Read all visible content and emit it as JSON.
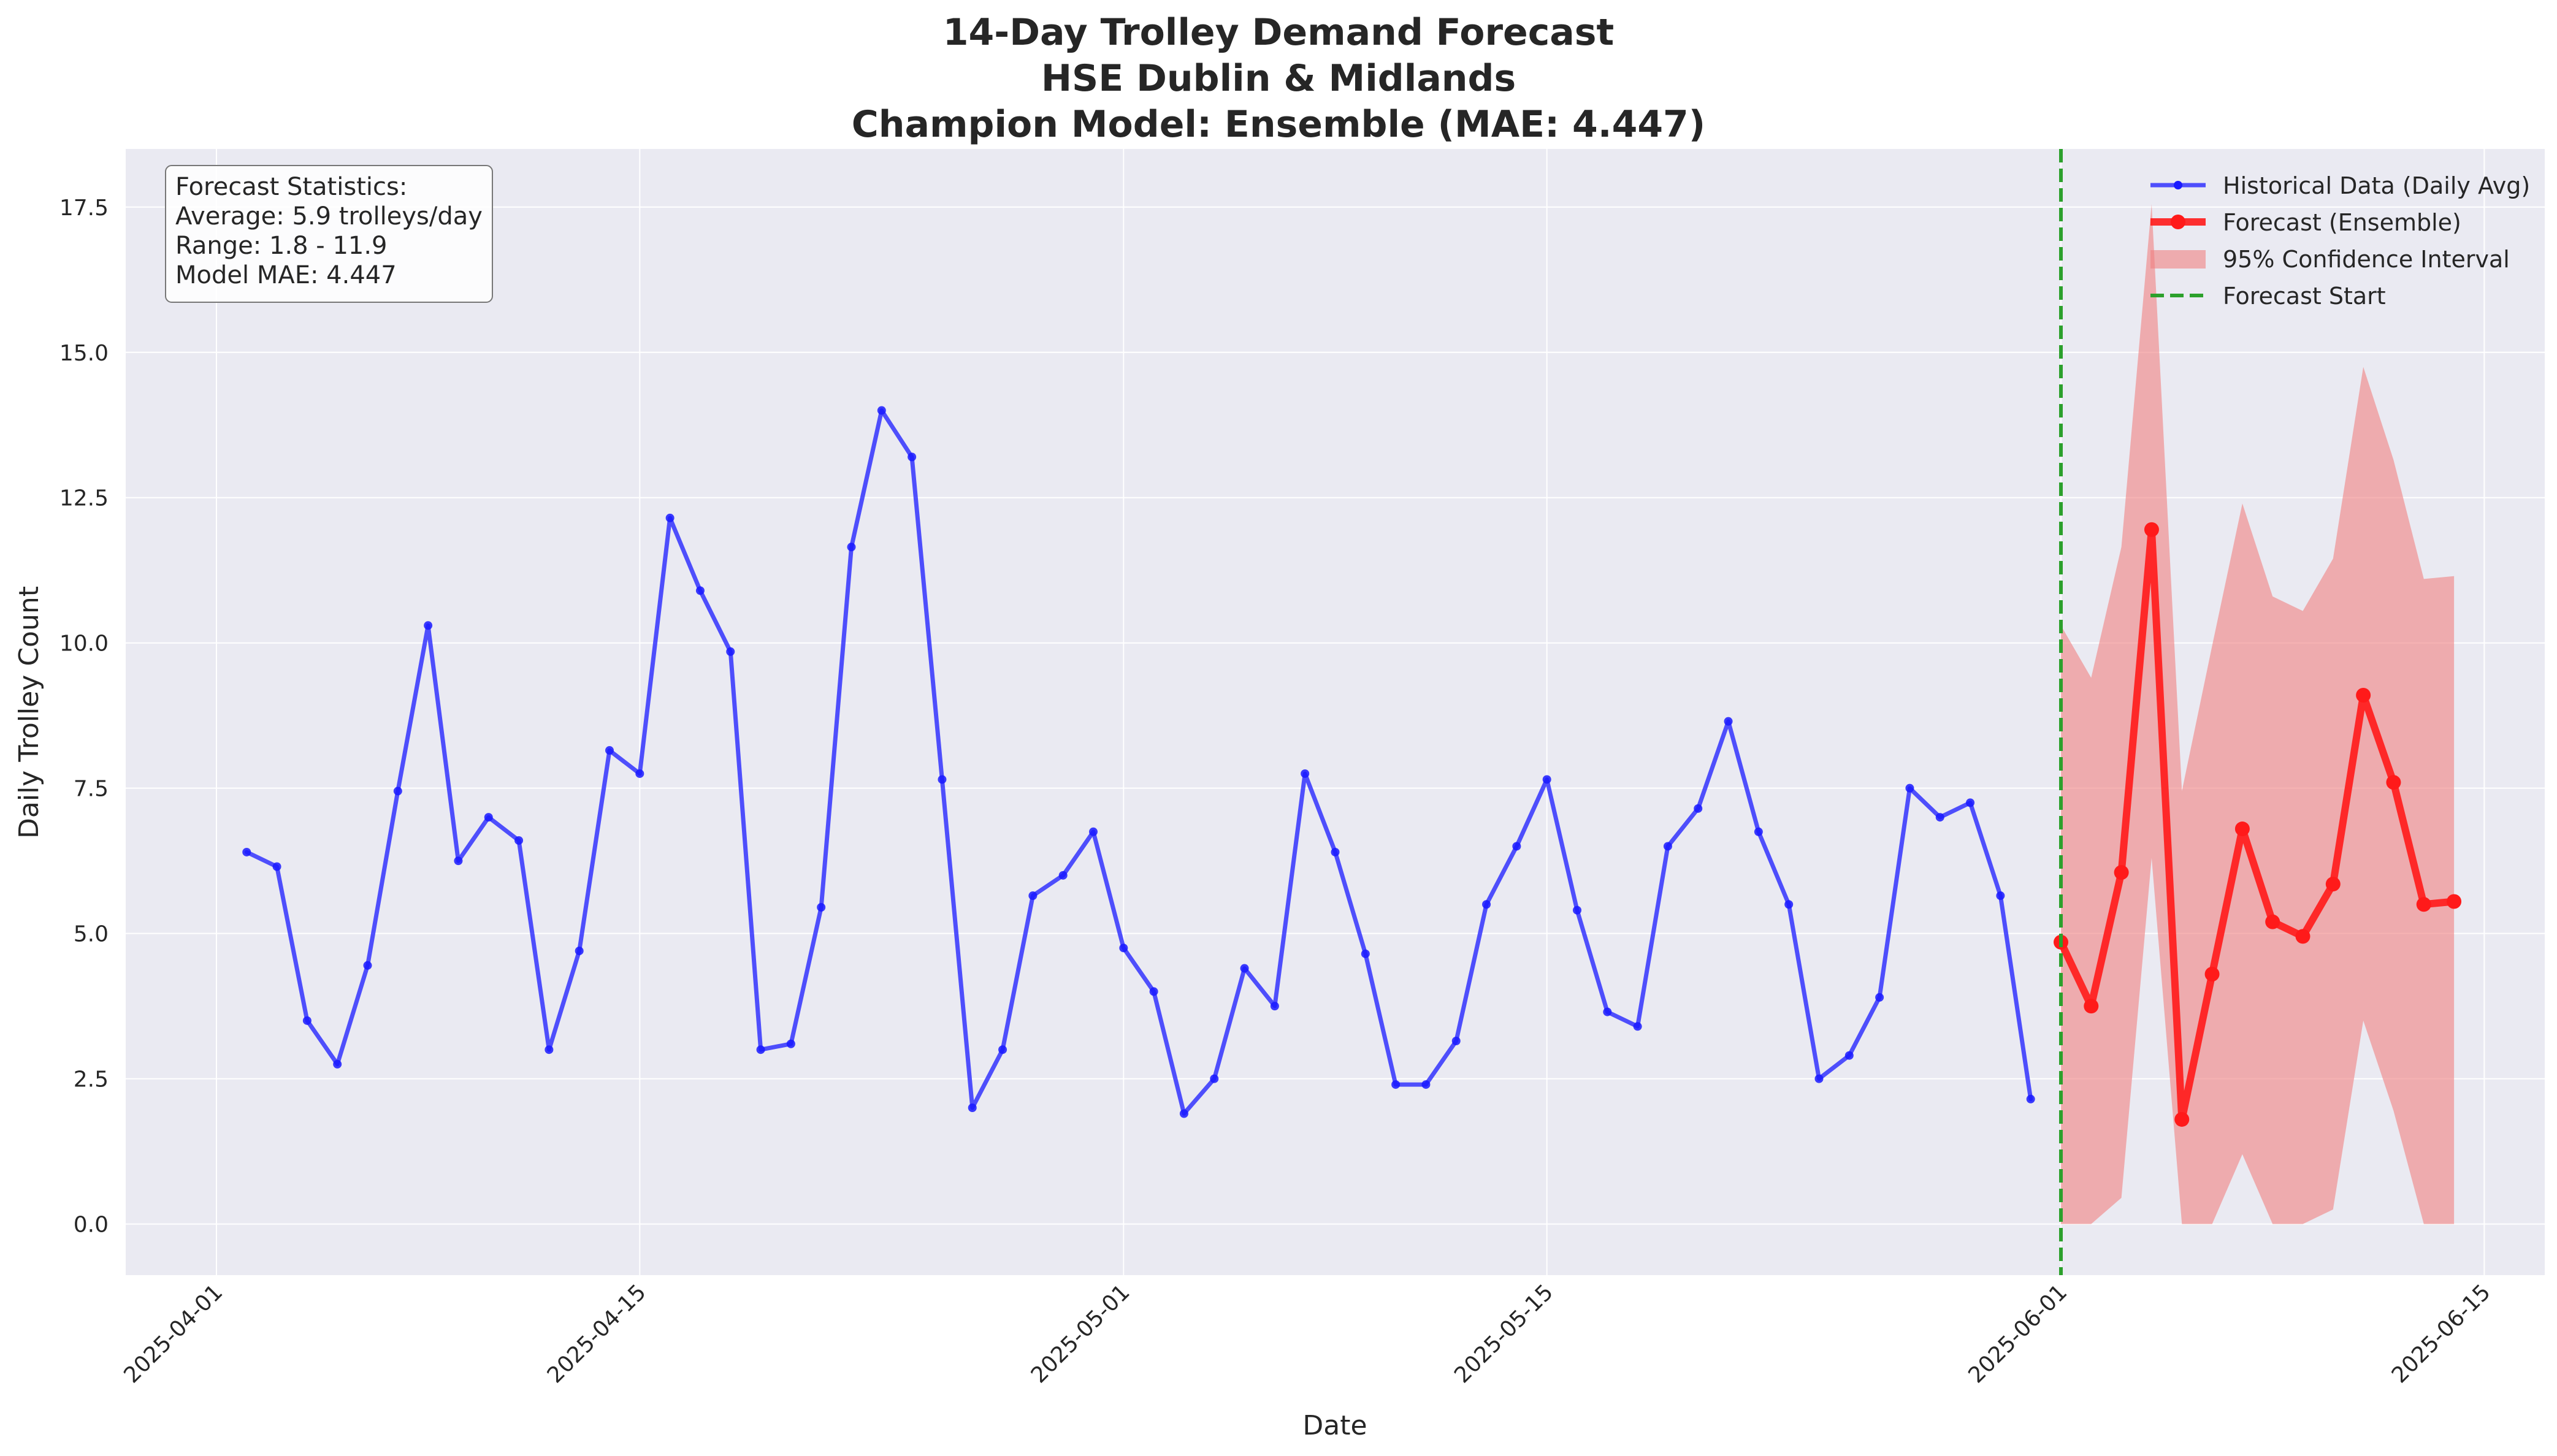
{
  "chart_data": {
    "type": "line",
    "title_lines": [
      "14-Day Trolley Demand Forecast",
      "HSE Dublin & Midlands",
      "Champion Model: Ensemble (MAE: 4.447)"
    ],
    "xlabel": "Date",
    "ylabel": "Daily Trolley Count",
    "x_ticks": [
      "2025-04-01",
      "2025-04-15",
      "2025-05-01",
      "2025-05-15",
      "2025-06-01",
      "2025-06-15"
    ],
    "y_ticks": [
      "0.0",
      "2.5",
      "5.0",
      "7.5",
      "10.0",
      "12.5",
      "15.0",
      "17.5"
    ],
    "xlim": [
      "2025-03-29",
      "2025-06-17"
    ],
    "ylim": [
      -0.88,
      18.5
    ],
    "grid": true,
    "legend_position": "top-right",
    "stats_box_position": "top-left",
    "colors": {
      "background": "#eaeaf2",
      "grid": "#ffffff",
      "historical": "#1a1aff",
      "forecast": "#ff1a1a",
      "ci_fill": "#f08080",
      "forecast_start": "#2ca02c"
    },
    "historical": {
      "name": "Historical Data (Daily Avg)",
      "x": [
        "2025-04-02",
        "2025-04-03",
        "2025-04-04",
        "2025-04-05",
        "2025-04-06",
        "2025-04-07",
        "2025-04-08",
        "2025-04-09",
        "2025-04-10",
        "2025-04-11",
        "2025-04-12",
        "2025-04-13",
        "2025-04-14",
        "2025-04-15",
        "2025-04-16",
        "2025-04-17",
        "2025-04-18",
        "2025-04-19",
        "2025-04-20",
        "2025-04-21",
        "2025-04-22",
        "2025-04-23",
        "2025-04-24",
        "2025-04-25",
        "2025-04-26",
        "2025-04-27",
        "2025-04-28",
        "2025-04-29",
        "2025-04-30",
        "2025-05-01",
        "2025-05-02",
        "2025-05-03",
        "2025-05-04",
        "2025-05-05",
        "2025-05-06",
        "2025-05-07",
        "2025-05-08",
        "2025-05-09",
        "2025-05-10",
        "2025-05-11",
        "2025-05-12",
        "2025-05-13",
        "2025-05-14",
        "2025-05-15",
        "2025-05-16",
        "2025-05-17",
        "2025-05-18",
        "2025-05-19",
        "2025-05-20",
        "2025-05-21",
        "2025-05-22",
        "2025-05-23",
        "2025-05-24",
        "2025-05-25",
        "2025-05-26",
        "2025-05-27",
        "2025-05-28",
        "2025-05-29",
        "2025-05-30",
        "2025-05-31"
      ],
      "y": [
        6.4,
        6.15,
        3.5,
        2.75,
        4.45,
        7.45,
        10.3,
        6.25,
        7.0,
        6.6,
        3.0,
        4.7,
        8.15,
        7.75,
        12.15,
        10.9,
        9.85,
        3.0,
        3.1,
        5.45,
        11.65,
        14.0,
        13.2,
        7.65,
        2.0,
        3.0,
        5.65,
        6.0,
        6.75,
        4.75,
        4.0,
        1.9,
        2.5,
        4.4,
        3.75,
        7.75,
        6.4,
        4.65,
        2.4,
        2.4,
        3.15,
        5.5,
        6.5,
        7.65,
        5.4,
        3.65,
        3.4,
        6.5,
        7.15,
        8.65,
        6.75,
        5.5,
        2.5,
        2.9,
        3.9,
        7.5,
        7.0,
        7.25,
        5.65,
        2.15
      ]
    },
    "forecast": {
      "name": "Forecast (Ensemble)",
      "x": [
        "2025-06-01",
        "2025-06-02",
        "2025-06-03",
        "2025-06-04",
        "2025-06-05",
        "2025-06-06",
        "2025-06-07",
        "2025-06-08",
        "2025-06-09",
        "2025-06-10",
        "2025-06-11",
        "2025-06-12",
        "2025-06-13",
        "2025-06-14"
      ],
      "y": [
        4.85,
        3.75,
        6.05,
        11.95,
        1.8,
        4.3,
        6.8,
        5.2,
        4.95,
        5.85,
        9.1,
        7.6,
        5.5,
        5.55
      ]
    },
    "confidence_interval": {
      "name": "95% Confidence Interval",
      "lower": [
        0.0,
        0.0,
        0.45,
        6.3,
        0.0,
        0.0,
        1.2,
        0.0,
        0.0,
        0.25,
        3.5,
        1.95,
        0.0,
        0.0
      ],
      "upper": [
        10.3,
        9.4,
        11.65,
        17.55,
        7.45,
        9.95,
        12.4,
        10.8,
        10.55,
        11.45,
        14.75,
        13.15,
        11.1,
        11.15
      ]
    },
    "forecast_start": {
      "name": "Forecast Start",
      "x": "2025-06-01"
    },
    "stats_box": {
      "lines": [
        "Forecast Statistics:",
        "Average: 5.9 trolleys/day",
        "Range: 1.8 - 11.9",
        "Model MAE: 4.447"
      ]
    }
  }
}
